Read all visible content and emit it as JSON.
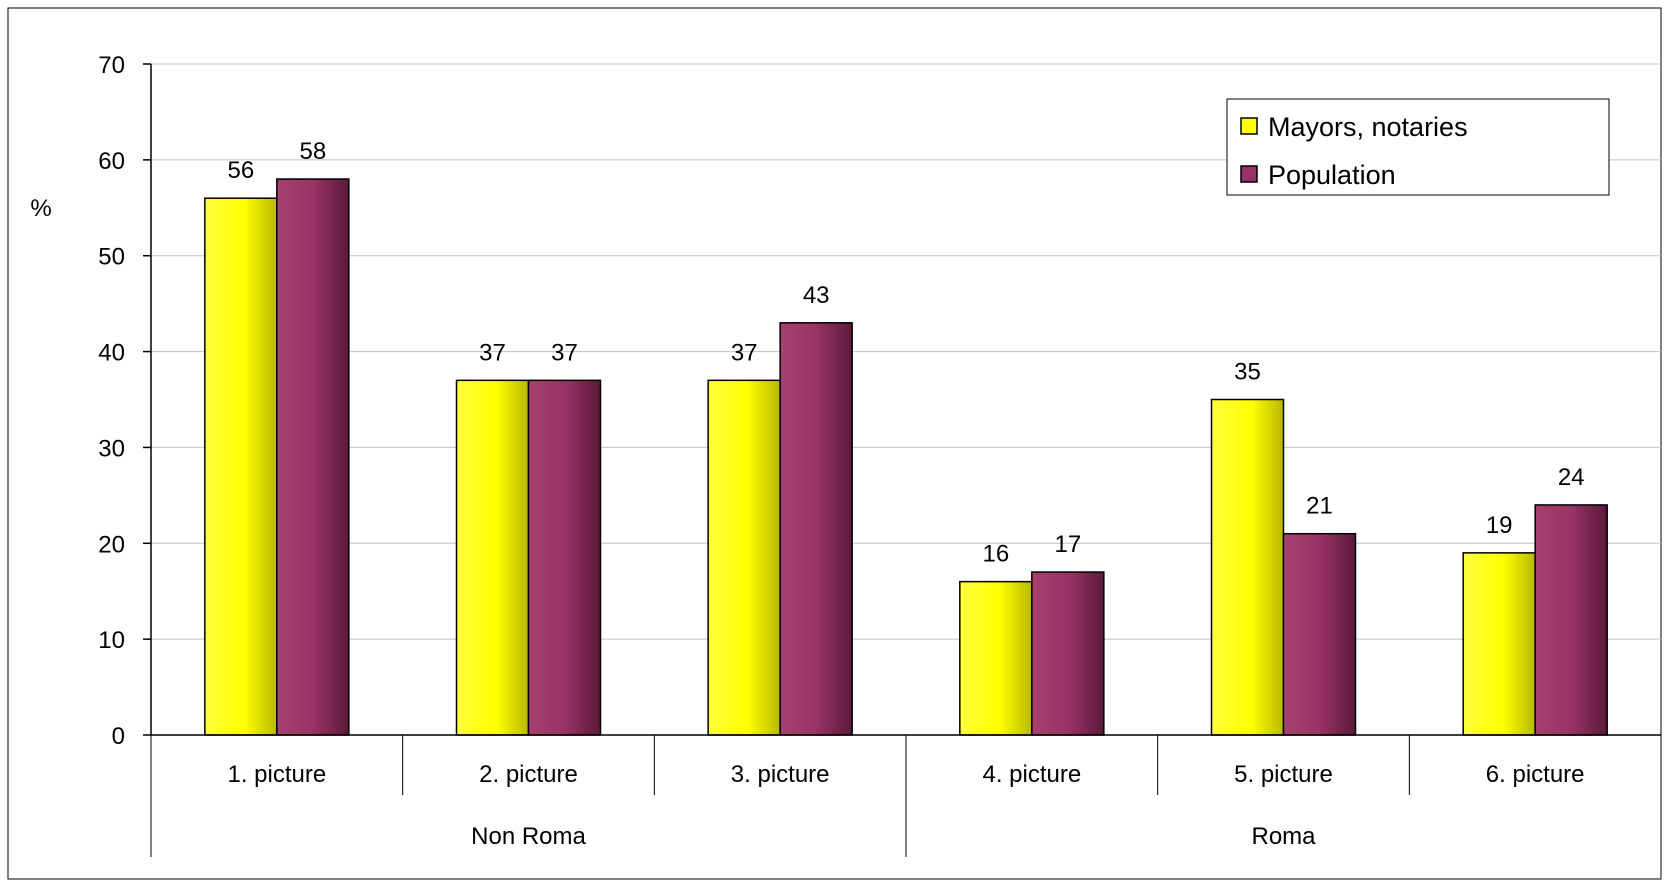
{
  "chart_data": {
    "type": "bar",
    "title": "",
    "xlabel": "",
    "ylabel": "%",
    "ylim": [
      0,
      70
    ],
    "yticks": [
      0,
      10,
      20,
      30,
      40,
      50,
      60,
      70
    ],
    "grid": true,
    "legend_position": "top-right",
    "categories": [
      "1. picture",
      "2. picture",
      "3. picture",
      "4. picture",
      "5. picture",
      "6. picture"
    ],
    "groups": [
      {
        "label": "Non Roma",
        "categories": [
          "1. picture",
          "2. picture",
          "3. picture"
        ]
      },
      {
        "label": "Roma",
        "categories": [
          "4. picture",
          "5. picture",
          "6. picture"
        ]
      }
    ],
    "series": [
      {
        "name": "Mayors, notaries",
        "values": [
          56,
          37,
          37,
          16,
          35,
          19
        ],
        "color": "#ffff00"
      },
      {
        "name": "Population",
        "values": [
          58,
          37,
          43,
          17,
          21,
          24
        ],
        "color": "#993366"
      }
    ]
  }
}
